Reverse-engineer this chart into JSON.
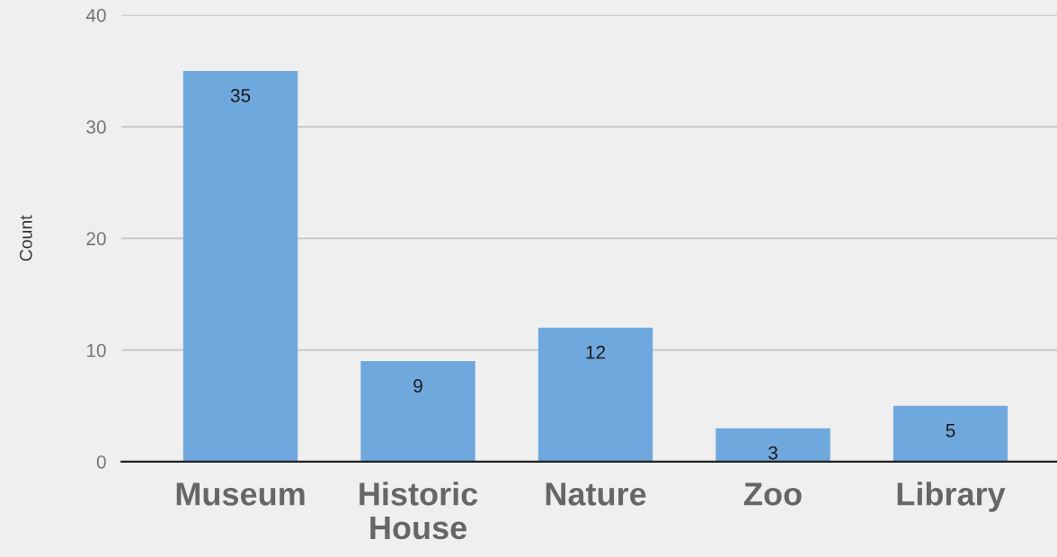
{
  "chart_data": {
    "type": "bar",
    "ylabel": "Count",
    "categories": [
      "Museum",
      "Historic House",
      "Nature",
      "Zoo",
      "Library"
    ],
    "values": [
      35,
      9,
      12,
      3,
      5
    ],
    "color": "#6fa8dc",
    "ylim": [
      0,
      40
    ],
    "yticks": [
      0,
      10,
      20,
      30,
      40
    ],
    "grid": "y",
    "data_labels": true,
    "legend": false
  }
}
